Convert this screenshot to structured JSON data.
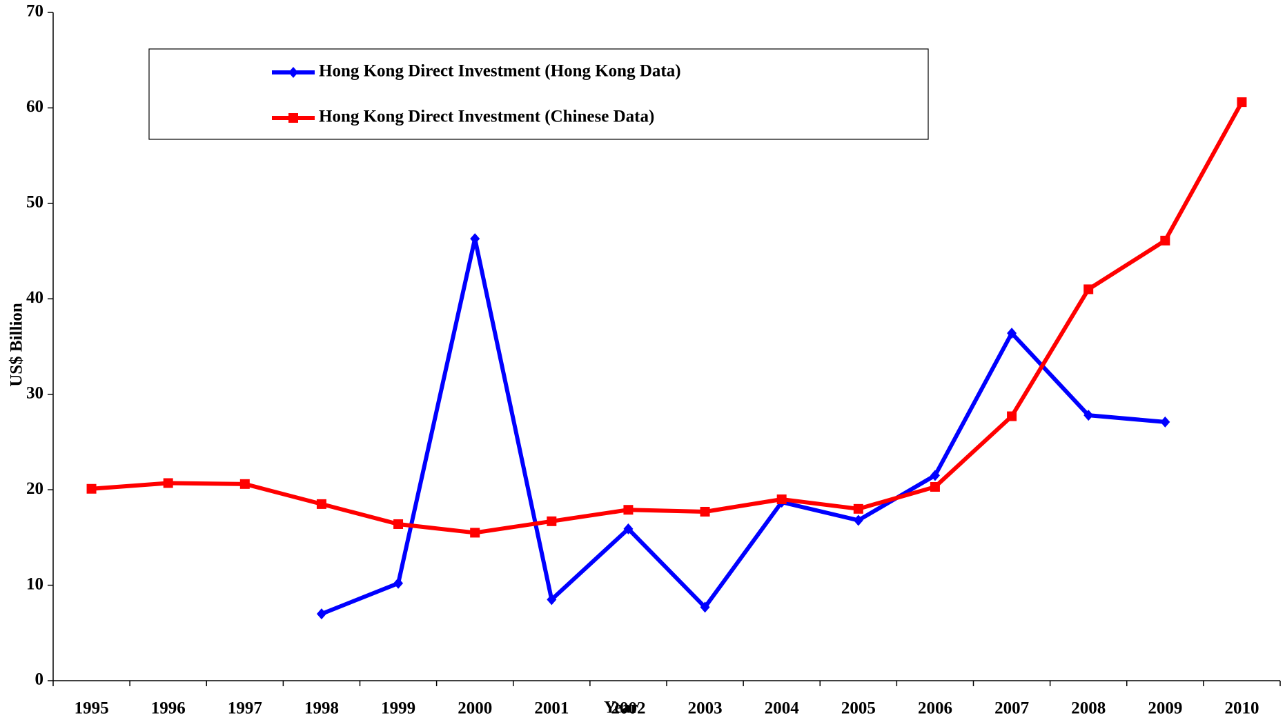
{
  "chart_data": {
    "type": "line",
    "x_label": "Year",
    "y_label": "US$ Billion",
    "categories": [
      "1995",
      "1996",
      "1997",
      "1998",
      "1999",
      "2000",
      "2001",
      "2002",
      "2003",
      "2004",
      "2005",
      "2006",
      "2007",
      "2008",
      "2009",
      "2010"
    ],
    "series": [
      {
        "name": "Hong Kong Direct Investment (Hong Kong Data)",
        "color": "#0000ff",
        "marker": "diamond",
        "values": [
          null,
          null,
          null,
          7.0,
          10.2,
          46.3,
          8.5,
          15.9,
          7.7,
          18.7,
          16.8,
          21.5,
          36.4,
          27.8,
          27.1,
          null
        ]
      },
      {
        "name": "Hong Kong Direct Investment (Chinese Data)",
        "color": "#ff0000",
        "marker": "square",
        "values": [
          20.1,
          20.7,
          20.6,
          18.5,
          16.4,
          15.5,
          16.7,
          17.9,
          17.7,
          19.0,
          18.0,
          20.3,
          27.7,
          41.0,
          46.1,
          60.6
        ]
      }
    ],
    "ylim": [
      0,
      70
    ],
    "yticks": [
      0,
      10,
      20,
      30,
      40,
      50,
      60,
      70
    ],
    "grid": false,
    "legend": "top-left"
  }
}
